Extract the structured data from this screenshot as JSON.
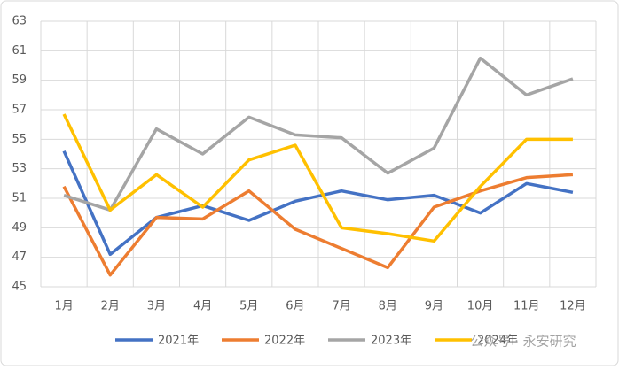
{
  "chart_data": {
    "type": "line",
    "categories": [
      "1月",
      "2月",
      "3月",
      "4月",
      "5月",
      "6月",
      "7月",
      "8月",
      "9月",
      "10月",
      "11月",
      "12月"
    ],
    "series": [
      {
        "name": "2021年",
        "color": "#4472c4",
        "values": [
          54.2,
          47.2,
          49.7,
          50.5,
          49.5,
          50.8,
          51.5,
          50.9,
          51.2,
          50.0,
          52.0,
          51.4
        ]
      },
      {
        "name": "2022年",
        "color": "#ed7d31",
        "values": [
          51.8,
          45.8,
          49.7,
          49.6,
          51.5,
          48.9,
          47.6,
          46.3,
          50.4,
          51.5,
          52.4,
          52.6
        ]
      },
      {
        "name": "2023年",
        "color": "#a5a5a5",
        "values": [
          51.2,
          50.2,
          55.7,
          54.0,
          56.5,
          55.3,
          55.1,
          52.7,
          54.4,
          60.5,
          58.0,
          59.1
        ]
      },
      {
        "name": "2024年",
        "color": "#ffc000",
        "values": [
          56.7,
          50.2,
          52.6,
          50.4,
          53.6,
          54.6,
          49.0,
          48.6,
          48.1,
          51.8,
          55.0,
          55.0
        ]
      }
    ],
    "ylim": [
      45,
      63
    ],
    "yticks": [
      45,
      47,
      49,
      51,
      53,
      55,
      57,
      59,
      61,
      63
    ],
    "grid": true,
    "watermark": "公众号 · 永安研究"
  }
}
